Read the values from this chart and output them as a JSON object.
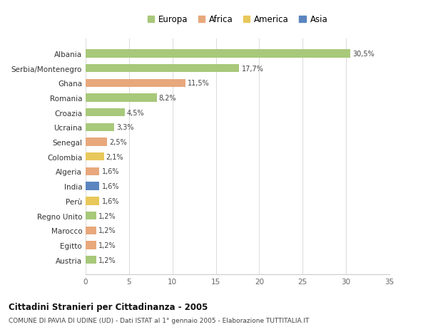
{
  "countries": [
    "Albania",
    "Serbia/Montenegro",
    "Ghana",
    "Romania",
    "Croazia",
    "Ucraina",
    "Senegal",
    "Colombia",
    "Algeria",
    "India",
    "Perù",
    "Regno Unito",
    "Marocco",
    "Egitto",
    "Austria"
  ],
  "values": [
    30.5,
    17.7,
    11.5,
    8.2,
    4.5,
    3.3,
    2.5,
    2.1,
    1.6,
    1.6,
    1.6,
    1.2,
    1.2,
    1.2,
    1.2
  ],
  "labels": [
    "30,5%",
    "17,7%",
    "11,5%",
    "8,2%",
    "4,5%",
    "3,3%",
    "2,5%",
    "2,1%",
    "1,6%",
    "1,6%",
    "1,6%",
    "1,2%",
    "1,2%",
    "1,2%",
    "1,2%"
  ],
  "categories": [
    "Europa",
    "Africa",
    "America",
    "Asia"
  ],
  "bar_colors": [
    "#a8c87a",
    "#a8c87a",
    "#e8a87c",
    "#a8c87a",
    "#a8c87a",
    "#a8c87a",
    "#e8a87c",
    "#e8c85a",
    "#e8a87c",
    "#5a85c0",
    "#e8c85a",
    "#a8c87a",
    "#e8a87c",
    "#e8a87c",
    "#a8c87a"
  ],
  "legend_colors": [
    "#a8c87a",
    "#e8a87c",
    "#e8c85a",
    "#5a85c0"
  ],
  "title": "Cittadini Stranieri per Cittadinanza - 2005",
  "subtitle": "COMUNE DI PAVIA DI UDINE (UD) - Dati ISTAT al 1° gennaio 2005 - Elaborazione TUTTITALIA.IT",
  "xlim": [
    0,
    35
  ],
  "xticks": [
    0,
    5,
    10,
    15,
    20,
    25,
    30,
    35
  ],
  "background_color": "#ffffff",
  "grid_color": "#dddddd",
  "bar_height": 0.55
}
